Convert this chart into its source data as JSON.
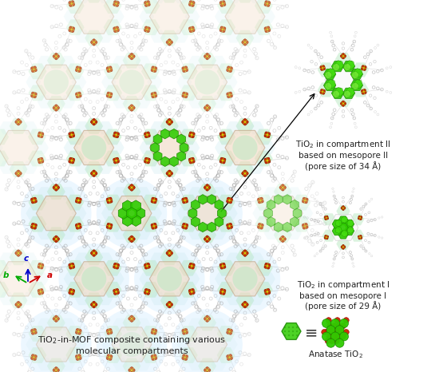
{
  "fig_width": 5.5,
  "fig_height": 4.66,
  "dpi": 100,
  "bg_color": "#ffffff",
  "caption_main_line1": "TiO₂-in-MOF composite containing various",
  "caption_main_line2": "molecular compartments",
  "caption_rt": "TiO₂ in compartment II\nbased on mesopore II\n(pore size of 34 Å)",
  "caption_rb": "TiO₂ in compartment I\nbased on mesopore I\n(pore size of 29 Å)",
  "caption_anatase": "Anatase TiO₂",
  "green_tio2": "#2ecc00",
  "green_tio2_dark": "#1a8800",
  "orange_node": "#e8a020",
  "red_node": "#cc2200",
  "yellow_node": "#ddcc00",
  "gray_linker": "#999999",
  "blue_circle": "#aaddff",
  "pale_green": "#b8e8c0",
  "pale_peach": "#f0d8c0"
}
